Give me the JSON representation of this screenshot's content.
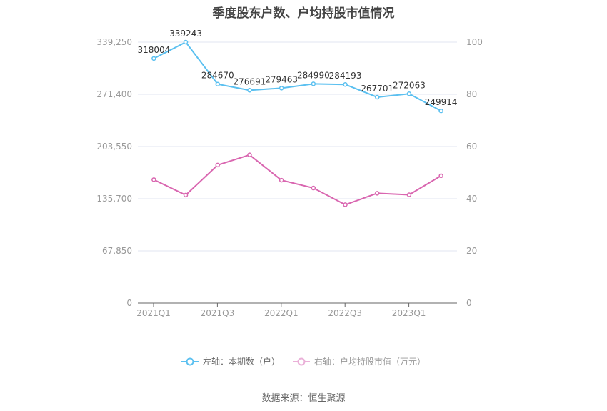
{
  "title": "季度股东户数、户均持股市值情况",
  "legend": {
    "left": "左轴：本期数（户）",
    "right": "右轴：户均持股市值（万元）"
  },
  "source": "数据来源：恒生聚源",
  "colors": {
    "left_series": "#5bc0f0",
    "right_series": "#d966b0",
    "grid": "#e0e4f0",
    "axis": "#666666"
  },
  "chart_data": {
    "type": "line",
    "title": "季度股东户数、户均持股市值情况",
    "categories": [
      "2021Q1",
      "2021Q2",
      "2021Q3",
      "2021Q4",
      "2022Q1",
      "2022Q2",
      "2022Q3",
      "2022Q4",
      "2023Q1",
      "2023Q2"
    ],
    "x_tick_labels": [
      "2021Q1",
      "2021Q3",
      "2022Q1",
      "2022Q3",
      "2023Q1"
    ],
    "series": [
      {
        "name": "左轴：本期数（户）",
        "axis": "left",
        "values": [
          318004,
          339243,
          284670,
          276691,
          279463,
          284990,
          284193,
          267701,
          272063,
          249914
        ],
        "labels_shown": true
      },
      {
        "name": "右轴：户均持股市值（万元）",
        "axis": "right",
        "values": [
          47.3,
          41.4,
          52.9,
          56.8,
          47.1,
          44.1,
          37.7,
          42.1,
          41.5,
          48.8
        ],
        "labels_shown": false
      }
    ],
    "left_axis": {
      "ticks": [
        "0",
        "67,850",
        "135,700",
        "203,550",
        "271,400",
        "339,250"
      ],
      "ylim": [
        0,
        339250
      ]
    },
    "right_axis": {
      "ticks": [
        "0",
        "20",
        "40",
        "60",
        "80",
        "100"
      ],
      "ylim": [
        0,
        100
      ]
    },
    "grid": true,
    "legend_position": "bottom"
  }
}
